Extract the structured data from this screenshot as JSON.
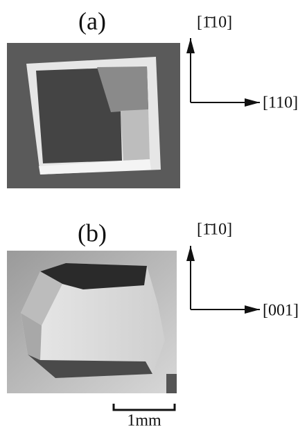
{
  "panels": [
    {
      "label": "(a)",
      "axis_up": "[1̄10]",
      "axis_right": "[110]"
    },
    {
      "label": "(b)",
      "axis_up": "[1̄10]",
      "axis_right": "[001]"
    }
  ],
  "scale_bar": "1mm"
}
